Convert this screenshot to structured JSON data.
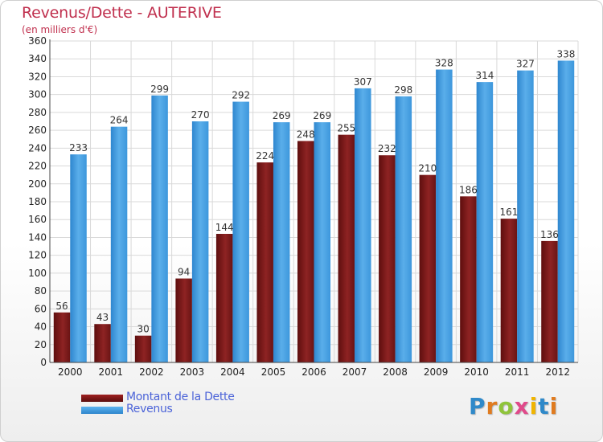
{
  "chart_data": {
    "type": "bar",
    "title": "Revenus/Dette - AUTERIVE",
    "subtitle": "(en milliers d'€)",
    "categories": [
      "2000",
      "2001",
      "2002",
      "2003",
      "2004",
      "2005",
      "2006",
      "2007",
      "2008",
      "2009",
      "2010",
      "2011",
      "2012"
    ],
    "series": [
      {
        "name": "Montant de la Dette",
        "values": [
          56,
          43,
          30,
          94,
          144,
          224,
          248,
          255,
          232,
          210,
          186,
          161,
          136
        ],
        "color": "#8b1a1a"
      },
      {
        "name": "Revenus",
        "values": [
          233,
          264,
          299,
          270,
          292,
          269,
          269,
          307,
          298,
          328,
          314,
          327,
          338
        ],
        "color": "#3f9ae0"
      }
    ],
    "ylim": [
      0,
      360
    ],
    "ytick_step": 20,
    "grid": true,
    "legend": "bottom-left"
  },
  "logo": {
    "letters": [
      "P",
      "r",
      "o",
      "x",
      "i",
      "t",
      "i"
    ],
    "colors": [
      "#2f89c9",
      "#e07b1f",
      "#8fc43b",
      "#e04a8a",
      "#f0b400",
      "#2f89c9",
      "#e07b1f"
    ]
  }
}
